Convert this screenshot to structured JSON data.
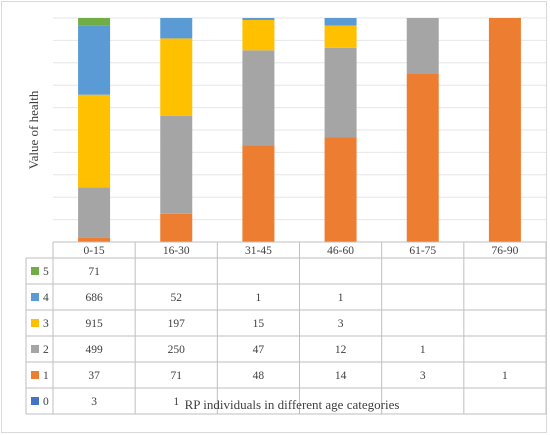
{
  "chart_data": {
    "type": "bar",
    "stacked": true,
    "normalized_percent": true,
    "xlabel": "RP individuals in different age categories",
    "ylabel": "Value of health",
    "categories": [
      "0-15",
      "16-30",
      "31-45",
      "46-60",
      "61-75",
      "76-90"
    ],
    "series": [
      {
        "name": "0",
        "color": "#4472c4",
        "values": [
          3,
          1,
          null,
          null,
          null,
          null
        ],
        "labels": [
          "3",
          "1",
          "",
          "",
          "",
          ""
        ]
      },
      {
        "name": "1",
        "color": "#ed7d31",
        "values": [
          37,
          71,
          48,
          14,
          3,
          1
        ],
        "labels": [
          "37",
          "71",
          "48",
          "14",
          "3",
          "1"
        ]
      },
      {
        "name": "2",
        "color": "#a5a5a5",
        "values": [
          499,
          250,
          47,
          12,
          1,
          null
        ],
        "labels": [
          "499",
          "250",
          "47",
          "12",
          "1",
          ""
        ]
      },
      {
        "name": "3",
        "color": "#ffc000",
        "values": [
          915,
          197,
          15,
          3,
          null,
          null
        ],
        "labels": [
          "915",
          "197",
          "15",
          "3",
          "",
          ""
        ]
      },
      {
        "name": "4",
        "color": "#5b9bd5",
        "values": [
          686,
          52,
          1,
          1,
          null,
          null
        ],
        "labels": [
          "686",
          "52",
          "1",
          "1",
          "",
          ""
        ]
      },
      {
        "name": "5",
        "color": "#70ad47",
        "values": [
          71,
          null,
          null,
          null,
          null,
          null
        ],
        "labels": [
          "71",
          "",
          "",
          "",
          "",
          ""
        ]
      }
    ],
    "grid": true,
    "legend": "data-table-left"
  }
}
